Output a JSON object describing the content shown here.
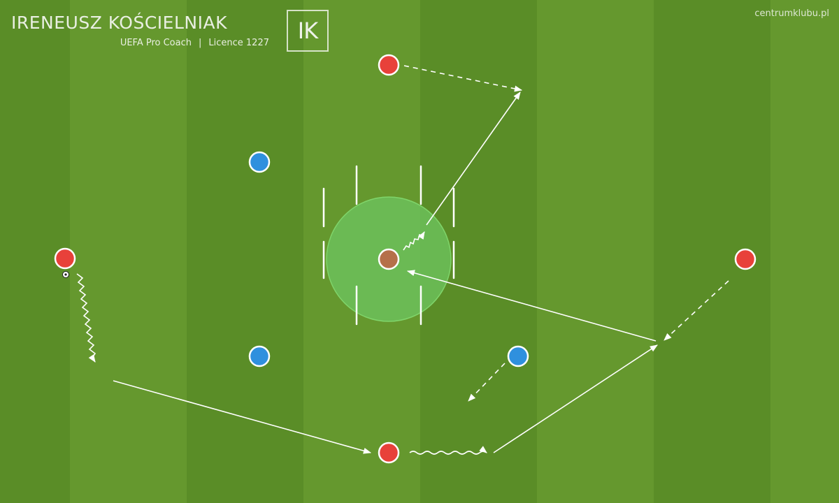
{
  "header": {
    "coach_name": "IRENEUSZ KOŚCIELNIAK",
    "coach_role": "UEFA Pro Coach",
    "separator": "|",
    "licence": "Licence 1227",
    "logo_text": "IK",
    "website": "centrumklubu.pl"
  },
  "colors": {
    "team_red": "#e8413a",
    "team_blue": "#2f90de",
    "neutral_player": "#b5704a",
    "zone_fill": "#66bb55",
    "stripe_light": "#66992e",
    "stripe_dark": "#578a25",
    "line": "#ffffff"
  },
  "icons": {
    "ball": "soccer-ball-icon",
    "logo": "ik-monogram-logo"
  }
}
